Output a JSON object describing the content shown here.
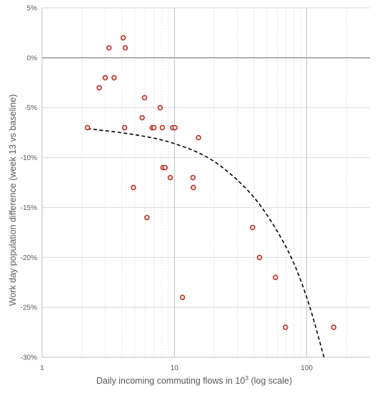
{
  "chart_data": {
    "type": "scatter",
    "title": "",
    "xlabel": {
      "main": "Daily incoming commuting flows in 10",
      "sup": "3",
      "suffix": " (log scale)"
    },
    "ylabel": "Work day population difference (week 13 vs baseline)",
    "x_scale": "log",
    "xlim": [
      1,
      300
    ],
    "ylim": [
      -0.3,
      0.05
    ],
    "x_ticks": [
      {
        "value": 1,
        "label": "1"
      },
      {
        "value": 10,
        "label": "10"
      },
      {
        "value": 100,
        "label": "100"
      }
    ],
    "y_ticks": [
      {
        "value": 0.05,
        "label": "5%"
      },
      {
        "value": 0,
        "label": "0%"
      },
      {
        "value": -0.05,
        "label": "-5%"
      },
      {
        "value": -0.1,
        "label": "-10%"
      },
      {
        "value": -0.15,
        "label": "-15%"
      },
      {
        "value": -0.2,
        "label": "-20%"
      },
      {
        "value": -0.25,
        "label": "-25%"
      },
      {
        "value": -0.3,
        "label": "-30%"
      }
    ],
    "grid": true,
    "marker_color": "#c0392b",
    "trend_color": "#000000",
    "series": [
      {
        "points": [
          {
            "x": 2.2,
            "y": -0.07
          },
          {
            "x": 2.7,
            "y": -0.03
          },
          {
            "x": 3.0,
            "y": -0.02
          },
          {
            "x": 3.2,
            "y": 0.01
          },
          {
            "x": 3.5,
            "y": -0.02
          },
          {
            "x": 4.1,
            "y": 0.02
          },
          {
            "x": 4.2,
            "y": -0.07
          },
          {
            "x": 4.25,
            "y": 0.01
          },
          {
            "x": 4.9,
            "y": -0.13
          },
          {
            "x": 5.7,
            "y": -0.06
          },
          {
            "x": 5.95,
            "y": -0.04
          },
          {
            "x": 6.2,
            "y": -0.16
          },
          {
            "x": 6.8,
            "y": -0.07
          },
          {
            "x": 7.0,
            "y": -0.07
          },
          {
            "x": 7.8,
            "y": -0.05
          },
          {
            "x": 8.1,
            "y": -0.07
          },
          {
            "x": 8.2,
            "y": -0.11
          },
          {
            "x": 8.5,
            "y": -0.11
          },
          {
            "x": 9.3,
            "y": -0.12
          },
          {
            "x": 9.7,
            "y": -0.07
          },
          {
            "x": 10.1,
            "y": -0.07
          },
          {
            "x": 11.5,
            "y": -0.24
          },
          {
            "x": 13.8,
            "y": -0.12
          },
          {
            "x": 13.9,
            "y": -0.13
          },
          {
            "x": 15.2,
            "y": -0.08
          },
          {
            "x": 39,
            "y": -0.17
          },
          {
            "x": 44,
            "y": -0.2
          },
          {
            "x": 58,
            "y": -0.22
          },
          {
            "x": 69,
            "y": -0.27
          },
          {
            "x": 160,
            "y": -0.27
          }
        ]
      }
    ],
    "trendline": {
      "style": "dashed",
      "x": [
        2.2,
        5,
        10,
        20,
        40,
        70,
        100,
        135
      ],
      "y": [
        -0.071,
        -0.077,
        -0.086,
        -0.104,
        -0.14,
        -0.19,
        -0.24,
        -0.3
      ]
    }
  }
}
